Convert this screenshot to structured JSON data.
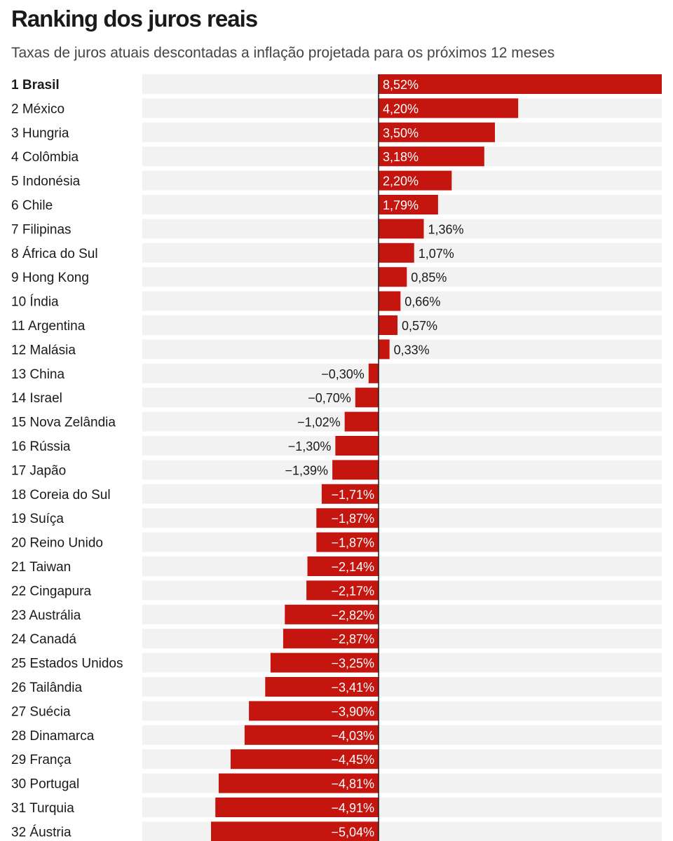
{
  "chart_data": {
    "type": "bar",
    "orientation": "horizontal",
    "title": "Ranking dos juros reais",
    "subtitle": "Taxas de juros atuais descontadas a inflação projetada para os próximos 12 meses",
    "xlabel": "",
    "ylabel": "",
    "xlim": [
      -5.04,
      8.52
    ],
    "unit": "%",
    "bar_color": "#c4160f",
    "row_color": "#f2f2f2",
    "categories": [
      "1 Brasil",
      "2 México",
      "3 Hungria",
      "4 Colômbia",
      "5 Indonésia",
      "6 Chile",
      "7 Filipinas",
      "8 África do Sul",
      "9 Hong Kong",
      "10 Índia",
      "11 Argentina",
      "12 Malásia",
      "13 China",
      "14 Israel",
      "15 Nova Zelândia",
      "16 Rússia",
      "17 Japão",
      "18 Coreia do Sul",
      "19 Suíça",
      "20 Reino Unido",
      "21 Taiwan",
      "22 Cingapura",
      "23 Austrália",
      "24 Canadá",
      "25 Estados Unidos",
      "26 Tailândia",
      "27 Suécia",
      "28 Dinamarca",
      "29 França",
      "30 Portugal",
      "31 Turquia",
      "32 Áustria"
    ],
    "values": [
      8.52,
      4.2,
      3.5,
      3.18,
      2.2,
      1.79,
      1.36,
      1.07,
      0.85,
      0.66,
      0.57,
      0.33,
      -0.3,
      -0.7,
      -1.02,
      -1.3,
      -1.39,
      -1.71,
      -1.87,
      -1.87,
      -2.14,
      -2.17,
      -2.82,
      -2.87,
      -3.25,
      -3.41,
      -3.9,
      -4.03,
      -4.45,
      -4.81,
      -4.91,
      -5.04
    ],
    "labels": [
      "8,52%",
      "4,20%",
      "3,50%",
      "3,18%",
      "2,20%",
      "1,79%",
      "1,36%",
      "1,07%",
      "0,85%",
      "0,66%",
      "0,57%",
      "0,33%",
      "−0,30%",
      "−0,70%",
      "−1,02%",
      "−1,30%",
      "−1,39%",
      "−1,71%",
      "−1,87%",
      "−1,87%",
      "−2,14%",
      "−2,17%",
      "−2,82%",
      "−2,87%",
      "−3,25%",
      "−3,41%",
      "−3,90%",
      "−4,03%",
      "−4,45%",
      "−4,81%",
      "−4,91%",
      "−5,04%"
    ]
  }
}
